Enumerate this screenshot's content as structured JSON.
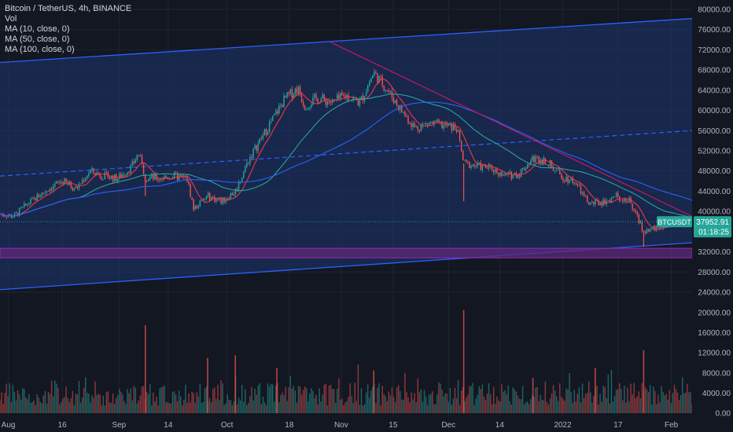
{
  "legend": {
    "symbol": "Bitcoin / TetherUS, 4h, BINANCE",
    "vol": "Vol",
    "ma10": "MA (10, close, 0)",
    "ma50": "MA (50, close, 0)",
    "ma100": "MA (100, close, 0)"
  },
  "price_label": {
    "symbol": "BTCUSDT",
    "price": "37952.91",
    "countdown": "01:18:25"
  },
  "colors": {
    "background": "#131722",
    "grid": "#1f2433",
    "channel_fill": "#1e3470",
    "channel_line": "#2962ff",
    "resistance": "#c2185b",
    "support_zone": "#5c2a7a",
    "ma10": "#f23645",
    "ma50": "#26a69a",
    "ma100": "#2962ff",
    "candle_up": "#26a69a",
    "candle_down": "#ef5350",
    "axis_text": "#b2b5be",
    "price_badge": "#26a69a"
  },
  "chart_data": {
    "type": "candlestick",
    "x_ticks": [
      "Aug",
      "16",
      "Sep",
      "14",
      "Oct",
      "18",
      "Nov",
      "15",
      "Dec",
      "14",
      "2022",
      "17",
      "Feb"
    ],
    "price_ticks": [
      "80000.00",
      "76000.00",
      "72000.00",
      "68000.00",
      "64000.00",
      "60000.00",
      "56000.00",
      "52000.00",
      "48000.00",
      "44000.00",
      "40000.00",
      "36000.00",
      "32000.00",
      "28000.00",
      "24000.00"
    ],
    "volume_ticks": [
      "20000.00",
      "16000.00",
      "12000.00",
      "8000.00",
      "4000.00",
      "0.00"
    ],
    "price_ylim": [
      22000,
      82000
    ],
    "volume_ylim": [
      0,
      22000
    ],
    "trend": [
      {
        "x": 0,
        "y": 39500
      },
      {
        "x": 0.02,
        "y": 39000
      },
      {
        "x": 0.04,
        "y": 41500
      },
      {
        "x": 0.07,
        "y": 44500
      },
      {
        "x": 0.09,
        "y": 46000
      },
      {
        "x": 0.11,
        "y": 44500
      },
      {
        "x": 0.13,
        "y": 48000
      },
      {
        "x": 0.15,
        "y": 47000
      },
      {
        "x": 0.17,
        "y": 46500
      },
      {
        "x": 0.19,
        "y": 48800
      },
      {
        "x": 0.2,
        "y": 51500
      },
      {
        "x": 0.21,
        "y": 46800
      },
      {
        "x": 0.23,
        "y": 46500
      },
      {
        "x": 0.25,
        "y": 47000
      },
      {
        "x": 0.27,
        "y": 46500
      },
      {
        "x": 0.28,
        "y": 40500
      },
      {
        "x": 0.3,
        "y": 43000
      },
      {
        "x": 0.32,
        "y": 42000
      },
      {
        "x": 0.34,
        "y": 44000
      },
      {
        "x": 0.36,
        "y": 50500
      },
      {
        "x": 0.38,
        "y": 55000
      },
      {
        "x": 0.41,
        "y": 62000
      },
      {
        "x": 0.43,
        "y": 64500
      },
      {
        "x": 0.44,
        "y": 61000
      },
      {
        "x": 0.46,
        "y": 62500
      },
      {
        "x": 0.48,
        "y": 61500
      },
      {
        "x": 0.5,
        "y": 63000
      },
      {
        "x": 0.52,
        "y": 61500
      },
      {
        "x": 0.54,
        "y": 67500
      },
      {
        "x": 0.56,
        "y": 64000
      },
      {
        "x": 0.58,
        "y": 60000
      },
      {
        "x": 0.6,
        "y": 56500
      },
      {
        "x": 0.62,
        "y": 57500
      },
      {
        "x": 0.64,
        "y": 57000
      },
      {
        "x": 0.66,
        "y": 56500
      },
      {
        "x": 0.67,
        "y": 49500
      },
      {
        "x": 0.69,
        "y": 49000
      },
      {
        "x": 0.71,
        "y": 48500
      },
      {
        "x": 0.73,
        "y": 47000
      },
      {
        "x": 0.75,
        "y": 47500
      },
      {
        "x": 0.77,
        "y": 50500
      },
      {
        "x": 0.79,
        "y": 50000
      },
      {
        "x": 0.81,
        "y": 47000
      },
      {
        "x": 0.83,
        "y": 46000
      },
      {
        "x": 0.85,
        "y": 41500
      },
      {
        "x": 0.87,
        "y": 41800
      },
      {
        "x": 0.89,
        "y": 43000
      },
      {
        "x": 0.91,
        "y": 42000
      },
      {
        "x": 0.93,
        "y": 36000
      },
      {
        "x": 0.95,
        "y": 36800
      },
      {
        "x": 0.97,
        "y": 38000
      },
      {
        "x": 1,
        "y": 37952
      }
    ],
    "down_wicks": [
      {
        "x": 0.21,
        "y": 43000
      },
      {
        "x": 0.28,
        "y": 40200
      },
      {
        "x": 0.67,
        "y": 42000
      },
      {
        "x": 0.93,
        "y": 33000
      }
    ],
    "volume_spikes": [
      {
        "x": 0.21,
        "v": 17500
      },
      {
        "x": 0.3,
        "v": 11000
      },
      {
        "x": 0.34,
        "v": 11500
      },
      {
        "x": 0.4,
        "v": 9000
      },
      {
        "x": 0.54,
        "v": 8500
      },
      {
        "x": 0.67,
        "v": 20500
      },
      {
        "x": 0.77,
        "v": 7000
      },
      {
        "x": 0.86,
        "v": 9000
      },
      {
        "x": 0.93,
        "v": 12500
      }
    ],
    "channel": {
      "upper": [
        {
          "x": 0,
          "y": 69500
        },
        {
          "x": 1,
          "y": 78200
        }
      ],
      "middle": [
        {
          "x": 0,
          "y": 47000
        },
        {
          "x": 1,
          "y": 56000
        }
      ],
      "lower": [
        {
          "x": 0,
          "y": 24500
        },
        {
          "x": 1,
          "y": 33800
        }
      ]
    },
    "resistance_line": [
      {
        "x": 0.478,
        "y": 73500
      },
      {
        "x": 1,
        "y": 39000
      }
    ],
    "support_zone": [
      30800,
      32700
    ],
    "last_price": 37952.91
  }
}
